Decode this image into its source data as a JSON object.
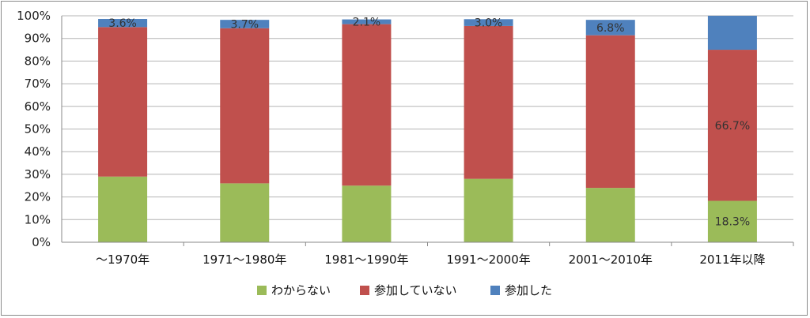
{
  "chart_data": {
    "type": "bar",
    "stacked": true,
    "categories": [
      "～1970年",
      "1971～1980年",
      "1981～1990年",
      "1991～2000年",
      "2001～2010年",
      "2011年以降"
    ],
    "ylim": [
      0,
      100
    ],
    "yticks": [
      "0%",
      "10%",
      "20%",
      "30%",
      "40%",
      "50%",
      "60%",
      "70%",
      "80%",
      "90%",
      "100%"
    ],
    "grid": true,
    "legend_position": "bottom",
    "series": [
      {
        "name": "わからない",
        "color": "#9bbb59",
        "values": [
          29.0,
          26.0,
          25.0,
          28.0,
          24.0,
          18.3
        ]
      },
      {
        "name": "参加していない",
        "color": "#c0504d",
        "values": [
          66.0,
          68.5,
          71.3,
          67.5,
          67.4,
          66.7
        ]
      },
      {
        "name": "参加した",
        "color": "#4f81bd",
        "values": [
          3.6,
          3.7,
          2.1,
          3.0,
          6.8,
          15.0
        ]
      }
    ],
    "data_labels": [
      {
        "category": 0,
        "series": 2,
        "text": "3.6%"
      },
      {
        "category": 1,
        "series": 2,
        "text": "3.7%"
      },
      {
        "category": 2,
        "series": 2,
        "text": "2.1%"
      },
      {
        "category": 3,
        "series": 2,
        "text": "3.0%"
      },
      {
        "category": 4,
        "series": 2,
        "text": "6.8%"
      },
      {
        "category": 5,
        "series": 1,
        "text": "66.7%"
      },
      {
        "category": 5,
        "series": 0,
        "text": "18.3%"
      }
    ]
  }
}
